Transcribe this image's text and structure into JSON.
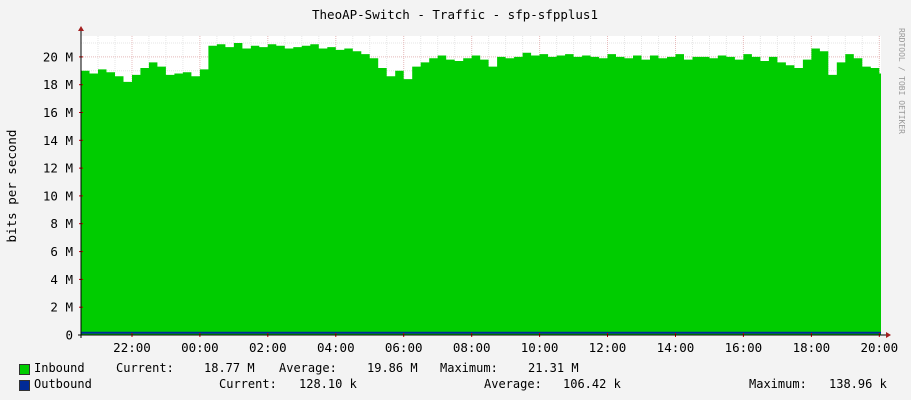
{
  "chart_data": {
    "type": "area",
    "title": "TheoAP-Switch - Traffic - sfp-sfpplus1",
    "ylabel": "bits per second",
    "watermark": "RRDTOOL / TOBI OETIKER",
    "ylim": [
      0,
      21.5
    ],
    "y_unit": "M",
    "y_ticks": [
      0,
      2,
      4,
      6,
      8,
      10,
      12,
      14,
      16,
      18,
      20
    ],
    "y_tick_labels": [
      "0",
      "2 M",
      "4 M",
      "6 M",
      "8 M",
      "10 M",
      "12 M",
      "14 M",
      "16 M",
      "18 M",
      "20 M"
    ],
    "x_range_hours": [
      20.5,
      44.05
    ],
    "x_ticks": [
      22,
      24,
      26,
      28,
      30,
      32,
      34,
      36,
      38,
      40,
      42,
      44
    ],
    "x_tick_labels": [
      "22:00",
      "00:00",
      "02:00",
      "04:00",
      "06:00",
      "08:00",
      "10:00",
      "12:00",
      "14:00",
      "16:00",
      "18:00",
      "20:00"
    ],
    "series": [
      {
        "name": "Inbound",
        "color": "#00cc00",
        "x": [
          20.5,
          20.75,
          21.0,
          21.25,
          21.5,
          21.75,
          22.0,
          22.25,
          22.5,
          22.75,
          23.0,
          23.25,
          23.5,
          23.75,
          24.0,
          24.25,
          24.5,
          24.75,
          25.0,
          25.25,
          25.5,
          25.75,
          26.0,
          26.25,
          26.5,
          26.75,
          27.0,
          27.25,
          27.5,
          27.75,
          28.0,
          28.25,
          28.5,
          28.75,
          29.0,
          29.25,
          29.5,
          29.75,
          30.0,
          30.25,
          30.5,
          30.75,
          31.0,
          31.25,
          31.5,
          31.75,
          32.0,
          32.25,
          32.5,
          32.75,
          33.0,
          33.25,
          33.5,
          33.75,
          34.0,
          34.25,
          34.5,
          34.75,
          35.0,
          35.25,
          35.5,
          35.75,
          36.0,
          36.25,
          36.5,
          36.75,
          37.0,
          37.25,
          37.5,
          37.75,
          38.0,
          38.25,
          38.5,
          38.75,
          39.0,
          39.25,
          39.5,
          39.75,
          40.0,
          40.25,
          40.5,
          40.75,
          41.0,
          41.25,
          41.5,
          41.75,
          42.0,
          42.25,
          42.5,
          42.75,
          43.0,
          43.25,
          43.5,
          43.75,
          44.0
        ],
        "values": [
          19.0,
          18.8,
          19.1,
          18.9,
          18.6,
          18.2,
          18.7,
          19.2,
          19.6,
          19.3,
          18.7,
          18.8,
          18.9,
          18.6,
          19.1,
          20.8,
          20.9,
          20.7,
          21.0,
          20.6,
          20.8,
          20.7,
          20.9,
          20.8,
          20.6,
          20.7,
          20.8,
          20.9,
          20.6,
          20.7,
          20.5,
          20.6,
          20.4,
          20.2,
          19.9,
          19.2,
          18.6,
          19.0,
          18.4,
          19.3,
          19.6,
          19.9,
          20.1,
          19.8,
          19.7,
          19.9,
          20.1,
          19.8,
          19.3,
          20.0,
          19.9,
          20.0,
          20.3,
          20.1,
          20.2,
          20.0,
          20.1,
          20.2,
          20.0,
          20.1,
          20.0,
          19.9,
          20.2,
          20.0,
          19.9,
          20.1,
          19.8,
          20.1,
          19.9,
          20.0,
          20.2,
          19.8,
          20.0,
          20.0,
          19.9,
          20.1,
          20.0,
          19.8,
          20.2,
          20.0,
          19.7,
          20.0,
          19.6,
          19.4,
          19.2,
          19.8,
          20.6,
          20.4,
          18.7,
          19.6,
          20.2,
          19.9,
          19.3,
          19.2,
          18.8
        ]
      },
      {
        "name": "Outbound",
        "color": "#002a97",
        "x": [
          20.5,
          44.0
        ],
        "values": [
          0.128,
          0.128
        ]
      }
    ],
    "legend": {
      "inbound": {
        "name": "Inbound",
        "current_label": "Current:",
        "current": "18.77 M",
        "average_label": "Average:",
        "average": "19.86 M",
        "maximum_label": "Maximum:",
        "maximum": "21.31 M"
      },
      "outbound": {
        "name": "Outbound",
        "current_label": "Current:",
        "current": "128.10 k",
        "average_label": "Average:",
        "average": "106.42 k",
        "maximum_label": "Maximum:",
        "maximum": "138.96 k"
      }
    }
  }
}
